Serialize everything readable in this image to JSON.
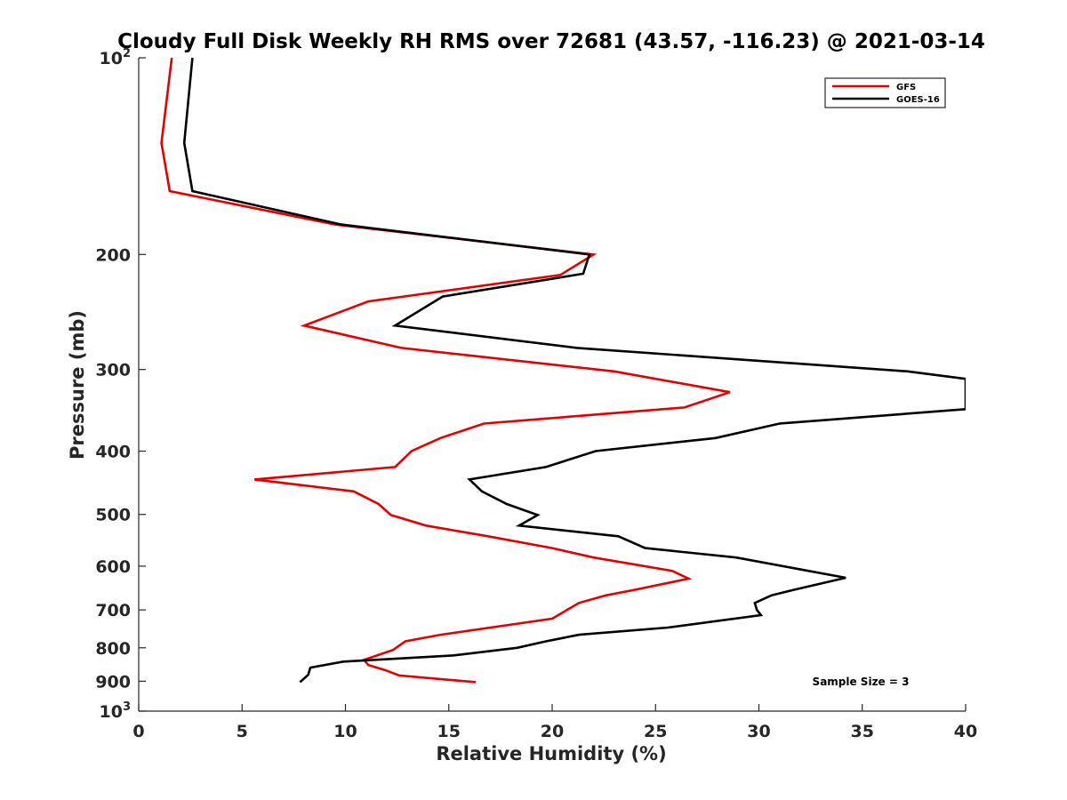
{
  "chart_data": {
    "type": "line",
    "title": "Cloudy Full Disk Weekly RH RMS over 72681 (43.57, -116.23) @ 2021-03-14",
    "xlabel": "Relative Humidity (%)",
    "ylabel": "Pressure (mb)",
    "xlim": [
      0,
      40
    ],
    "ylim": [
      100,
      1000
    ],
    "y_scale": "log",
    "y_reversed": true,
    "grid": false,
    "legend_position": "top-right",
    "x_ticks": [
      "0",
      "5",
      "10",
      "15",
      "20",
      "25",
      "30",
      "35",
      "40"
    ],
    "y_ticks": [
      {
        "value": 100,
        "label": "10",
        "sup": "2"
      },
      {
        "value": 200,
        "label": "200",
        "sup": ""
      },
      {
        "value": 300,
        "label": "300",
        "sup": ""
      },
      {
        "value": 400,
        "label": "400",
        "sup": ""
      },
      {
        "value": 500,
        "label": "500",
        "sup": ""
      },
      {
        "value": 600,
        "label": "600",
        "sup": ""
      },
      {
        "value": 700,
        "label": "700",
        "sup": ""
      },
      {
        "value": 800,
        "label": "800",
        "sup": ""
      },
      {
        "value": 900,
        "label": "900",
        "sup": ""
      },
      {
        "value": 1000,
        "label": "10",
        "sup": "3"
      }
    ],
    "annotation": "Sample Size = 3",
    "series": [
      {
        "name": "GFS",
        "color": "#e00000",
        "points": [
          [
            1.6,
            100
          ],
          [
            1.1,
            135
          ],
          [
            1.5,
            160
          ],
          [
            9.5,
            180
          ],
          [
            22.0,
            200
          ],
          [
            20.4,
            215
          ],
          [
            11.1,
            236
          ],
          [
            8.0,
            257
          ],
          [
            12.7,
            278
          ],
          [
            23.0,
            302
          ],
          [
            28.6,
            325
          ],
          [
            26.4,
            343
          ],
          [
            16.7,
            363
          ],
          [
            14.6,
            382
          ],
          [
            13.2,
            400
          ],
          [
            12.4,
            423
          ],
          [
            5.6,
            442
          ],
          [
            10.4,
            461
          ],
          [
            11.6,
            482
          ],
          [
            12.2,
            501
          ],
          [
            13.9,
            520
          ],
          [
            16.9,
            540
          ],
          [
            20.0,
            563
          ],
          [
            22.0,
            582
          ],
          [
            25.8,
            610
          ],
          [
            26.6,
            627
          ],
          [
            24.0,
            652
          ],
          [
            22.6,
            665
          ],
          [
            21.3,
            683
          ],
          [
            20.0,
            722
          ],
          [
            14.6,
            764
          ],
          [
            12.9,
            782
          ],
          [
            12.3,
            806
          ],
          [
            10.9,
            835
          ],
          [
            11.1,
            850
          ],
          [
            11.9,
            865
          ],
          [
            12.6,
            882
          ],
          [
            16.3,
            903
          ]
        ]
      },
      {
        "name": "GOES-16",
        "color": "#000000",
        "points": [
          [
            2.6,
            100
          ],
          [
            2.2,
            135
          ],
          [
            2.6,
            160
          ],
          [
            9.8,
            180
          ],
          [
            21.8,
            200
          ],
          [
            21.5,
            214
          ],
          [
            14.7,
            232
          ],
          [
            12.4,
            257
          ],
          [
            21.2,
            278
          ],
          [
            37.2,
            302
          ],
          [
            40.0,
            310
          ],
          [
            40.0,
            345
          ],
          [
            31.0,
            363
          ],
          [
            27.9,
            382
          ],
          [
            22.1,
            400
          ],
          [
            19.7,
            423
          ],
          [
            16.0,
            442
          ],
          [
            16.6,
            461
          ],
          [
            17.8,
            482
          ],
          [
            19.3,
            501
          ],
          [
            18.4,
            520
          ],
          [
            23.2,
            540
          ],
          [
            24.5,
            563
          ],
          [
            28.9,
            582
          ],
          [
            34.2,
            625
          ],
          [
            31.7,
            652
          ],
          [
            30.6,
            665
          ],
          [
            29.8,
            683
          ],
          [
            29.9,
            700
          ],
          [
            30.1,
            713
          ],
          [
            25.6,
            745
          ],
          [
            21.3,
            764
          ],
          [
            19.7,
            782
          ],
          [
            18.3,
            800
          ],
          [
            15.2,
            822
          ],
          [
            9.9,
            840
          ],
          [
            8.3,
            858
          ],
          [
            8.2,
            880
          ],
          [
            7.8,
            903
          ]
        ]
      }
    ]
  }
}
